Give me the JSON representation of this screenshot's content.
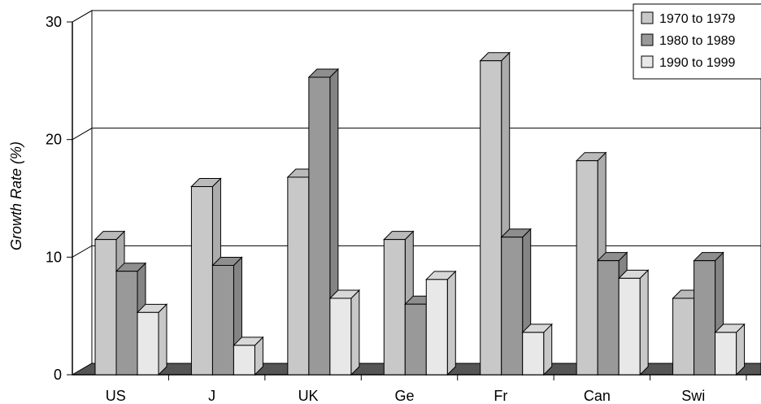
{
  "chart_data": {
    "type": "bar",
    "style": "3d-clustered",
    "title": "",
    "xlabel": "",
    "ylabel": "Growth Rate (%)",
    "ylim": [
      0,
      30
    ],
    "yticks": [
      "0",
      "10",
      "20",
      "30"
    ],
    "grid": true,
    "legend_position": "top-right",
    "categories": [
      "US",
      "J",
      "UK",
      "Ge",
      "Fr",
      "Can",
      "Swi"
    ],
    "series": [
      {
        "name": "1970 to 1979",
        "color": "#c8c8c8",
        "values": [
          11.5,
          16,
          16.8,
          11.5,
          26.7,
          18.2,
          6.5
        ]
      },
      {
        "name": "1980 to 1989",
        "color": "#999999",
        "values": [
          8.8,
          9.3,
          25.3,
          6,
          11.7,
          9.7,
          9.7
        ]
      },
      {
        "name": "1990 to 1999",
        "color": "#e8e8e8",
        "values": [
          5.3,
          2.5,
          6.5,
          8.1,
          3.6,
          8.2,
          3.6
        ]
      }
    ]
  }
}
